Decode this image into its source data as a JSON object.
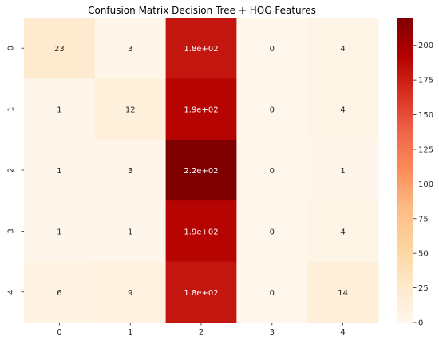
{
  "chart_data": {
    "type": "heatmap",
    "title": "Confusion Matrix Decision Tree + HOG Features",
    "xlabel": "",
    "ylabel": "",
    "x_categories": [
      "0",
      "1",
      "2",
      "3",
      "4"
    ],
    "y_categories": [
      "0",
      "1",
      "2",
      "3",
      "4"
    ],
    "values": [
      [
        23,
        3,
        180,
        0,
        4
      ],
      [
        1,
        12,
        190,
        0,
        4
      ],
      [
        1,
        3,
        220,
        0,
        1
      ],
      [
        1,
        1,
        190,
        0,
        4
      ],
      [
        6,
        9,
        180,
        0,
        14
      ]
    ],
    "annotations": [
      [
        "23",
        "3",
        "1.8e+02",
        "0",
        "4"
      ],
      [
        "1",
        "12",
        "1.9e+02",
        "0",
        "4"
      ],
      [
        "1",
        "3",
        "2.2e+02",
        "0",
        "1"
      ],
      [
        "1",
        "1",
        "1.9e+02",
        "0",
        "4"
      ],
      [
        "6",
        "9",
        "1.8e+02",
        "0",
        "14"
      ]
    ],
    "colormap": "OrRd",
    "colormap_stops": [
      "#fff7ec",
      "#fee8c8",
      "#fdd49e",
      "#fdbb84",
      "#fc8d59",
      "#ef6548",
      "#d7301f",
      "#b30000",
      "#7f0000"
    ],
    "vmin": 0,
    "vmax": 220,
    "colorbar_ticks": [
      "0",
      "25",
      "50",
      "75",
      "100",
      "125",
      "150",
      "175",
      "200"
    ],
    "colorbar_tick_values": [
      0,
      25,
      50,
      75,
      100,
      125,
      150,
      175,
      200
    ]
  }
}
